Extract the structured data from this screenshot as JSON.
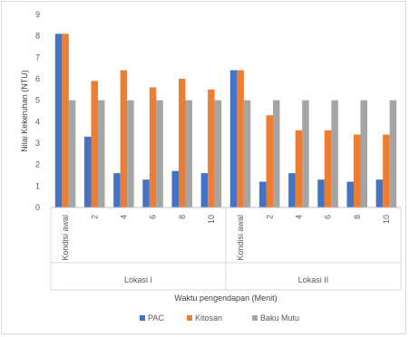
{
  "chart_data": {
    "type": "bar",
    "ylabel": "Nilai Kekeruhan (NTU)",
    "xlabel": "Waktu pengendapan (Menit)",
    "ylim": [
      0,
      9
    ],
    "yticks": [
      0,
      1,
      2,
      3,
      4,
      5,
      6,
      7,
      8,
      9
    ],
    "grid": false,
    "legend_position": "bottom",
    "groups": [
      "Lokasi I",
      "Lokasi II"
    ],
    "categories": [
      "Kondisi awal",
      "2",
      "4",
      "6",
      "8",
      "10",
      "Kondisi awal",
      "2",
      "4",
      "6",
      "8",
      "10"
    ],
    "series": [
      {
        "name": "PAC",
        "color": "#4472c4",
        "values": [
          8.1,
          3.3,
          1.6,
          1.3,
          1.7,
          1.6,
          6.4,
          1.2,
          1.6,
          1.3,
          1.2,
          1.3
        ]
      },
      {
        "name": "Kitosan",
        "color": "#ed7d31",
        "values": [
          8.1,
          5.9,
          6.4,
          5.6,
          6.0,
          5.5,
          6.4,
          4.3,
          3.6,
          3.6,
          3.4,
          3.4
        ]
      },
      {
        "name": "Baku Mutu",
        "color": "#a5a5a5",
        "values": [
          5,
          5,
          5,
          5,
          5,
          5,
          5,
          5,
          5,
          5,
          5,
          5
        ]
      }
    ]
  }
}
